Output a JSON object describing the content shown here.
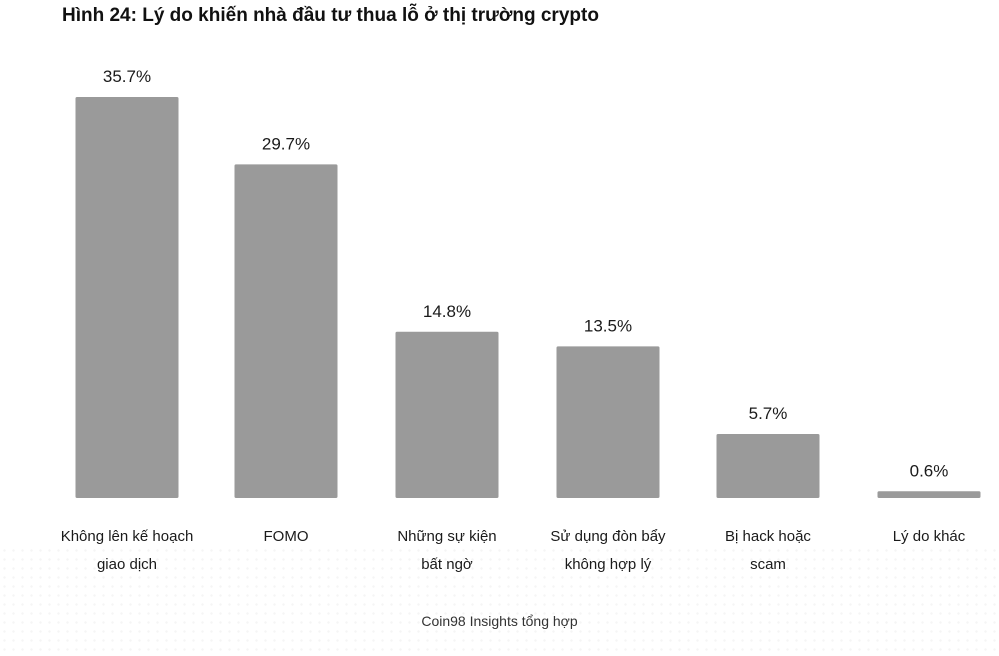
{
  "title": "Hình 24: Lý do khiến nhà đầu tư thua lỗ ở thị trường crypto",
  "source": "Coin98 Insights tổng hợp",
  "colors": {
    "bar": "#9a9a9a",
    "label": "#1a1a1a"
  },
  "chart_data": {
    "type": "bar",
    "title": "Hình 24: Lý do khiến nhà đầu tư thua lỗ ở thị trường crypto",
    "categories": [
      [
        "Không lên kế hoạch",
        "giao dịch"
      ],
      [
        "FOMO"
      ],
      [
        "Những sự kiện",
        "bất ngờ"
      ],
      [
        "Sử dụng đòn bẩy",
        "không hợp lý"
      ],
      [
        "Bị hack hoặc",
        "scam"
      ],
      [
        "Lý do khác"
      ]
    ],
    "values": [
      35.7,
      29.7,
      14.8,
      13.5,
      5.7,
      0.6
    ],
    "value_labels": [
      "35.7%",
      "29.7%",
      "14.8%",
      "13.5%",
      "5.7%",
      "0.6%"
    ],
    "unit": "%",
    "xlabel": "",
    "ylabel": "",
    "ylim": [
      0,
      35.7
    ],
    "grid": false,
    "legend": "none"
  }
}
